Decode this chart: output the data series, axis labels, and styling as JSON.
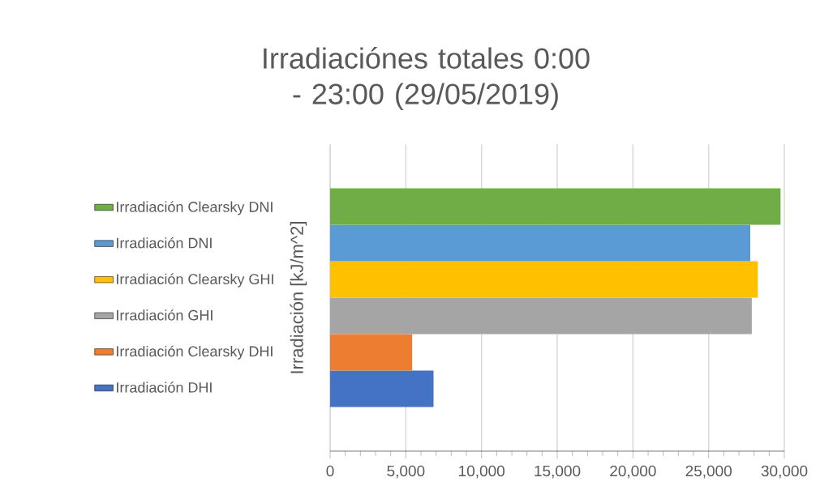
{
  "chart_data": {
    "type": "bar",
    "orientation": "horizontal",
    "title": "Irradiaciónes totales 0:00 - 23:00 (29/05/2019)",
    "ylabel": "Irradiación [kJ/m^2]",
    "categories": [
      null
    ],
    "series": [
      {
        "name": "Irradiación DHI",
        "color": "#4472c4",
        "values": [
          6830
        ]
      },
      {
        "name": "Irradiación Clearsky DHI",
        "color": "#ed7d31",
        "values": [
          5420
        ]
      },
      {
        "name": "Irradiación GHI",
        "color": "#a5a5a5",
        "values": [
          27850
        ]
      },
      {
        "name": "Irradiación Clearsky GHI",
        "color": "#ffc000",
        "values": [
          28250
        ]
      },
      {
        "name": "Irradiación DNI",
        "color": "#5b9bd5",
        "values": [
          27750
        ]
      },
      {
        "name": "Irradiación Clearsky DNI",
        "color": "#70ad47",
        "values": [
          29750
        ]
      }
    ],
    "xlim": [
      0,
      30000
    ],
    "xticks": [
      {
        "value": 0,
        "label": "0"
      },
      {
        "value": 5000,
        "label": "5,000"
      },
      {
        "value": 10000,
        "label": "10,000"
      },
      {
        "value": 15000,
        "label": "15,000"
      },
      {
        "value": 20000,
        "label": "20,000"
      },
      {
        "value": 25000,
        "label": "25,000"
      },
      {
        "value": 30000,
        "label": "30,000"
      }
    ],
    "grid": "x",
    "legend": "left"
  }
}
